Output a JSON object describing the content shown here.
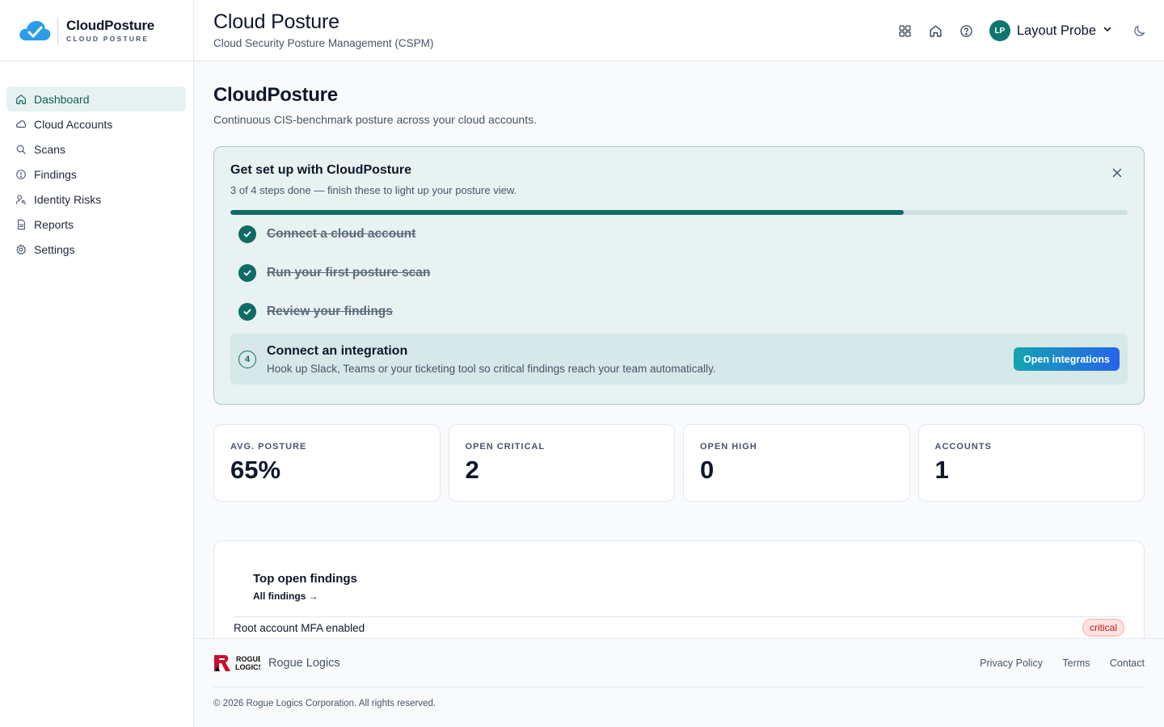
{
  "brand": {
    "name": "CloudPosture",
    "tagline": "CLOUD POSTURE"
  },
  "sidebar": {
    "items": [
      {
        "label": "Dashboard",
        "icon": "home-icon",
        "active": true
      },
      {
        "label": "Cloud Accounts",
        "icon": "cloud-icon"
      },
      {
        "label": "Scans",
        "icon": "search-icon"
      },
      {
        "label": "Findings",
        "icon": "alert-circle-icon"
      },
      {
        "label": "Identity Risks",
        "icon": "user-key-icon"
      },
      {
        "label": "Reports",
        "icon": "document-icon"
      },
      {
        "label": "Settings",
        "icon": "gear-icon"
      }
    ]
  },
  "header": {
    "title": "Cloud Posture",
    "subtitle": "Cloud Security Posture Management (CSPM)",
    "user_initials": "LP",
    "user_name": "Layout Probe"
  },
  "page": {
    "title": "CloudPosture",
    "subtitle": "Continuous CIS-benchmark posture across your cloud accounts."
  },
  "setup": {
    "title": "Get set up with CloudPosture",
    "subtitle": "3 of 4 steps done — finish these to light up your posture view.",
    "progress_fraction": 0.75,
    "steps_done": [
      "Connect a cloud account",
      "Run your first posture scan",
      "Review your findings"
    ],
    "current_step": {
      "number": "4",
      "title": "Connect an integration",
      "description": "Hook up Slack, Teams or your ticketing tool so critical findings reach your team automatically.",
      "button": "Open integrations"
    }
  },
  "stats": [
    {
      "label": "AVG. POSTURE",
      "value": "65%"
    },
    {
      "label": "OPEN CRITICAL",
      "value": "2"
    },
    {
      "label": "OPEN HIGH",
      "value": "0"
    },
    {
      "label": "ACCOUNTS",
      "value": "1"
    }
  ],
  "findings": {
    "title": "Top open findings",
    "link": "All findings →",
    "rows": [
      {
        "name": "Root account MFA enabled",
        "severity": "critical"
      }
    ]
  },
  "footer": {
    "company": "Rogue Logics",
    "logo_text_1": "ROGUE",
    "logo_text_2": "LOGICS",
    "links": [
      "Privacy Policy",
      "Terms",
      "Contact"
    ],
    "copyright": "© 2026 Rogue Logics Corporation. All rights reserved."
  },
  "colors": {
    "accent": "#0f6b66",
    "brand_blue": "#2b9de8",
    "critical": "#b91c1c"
  }
}
